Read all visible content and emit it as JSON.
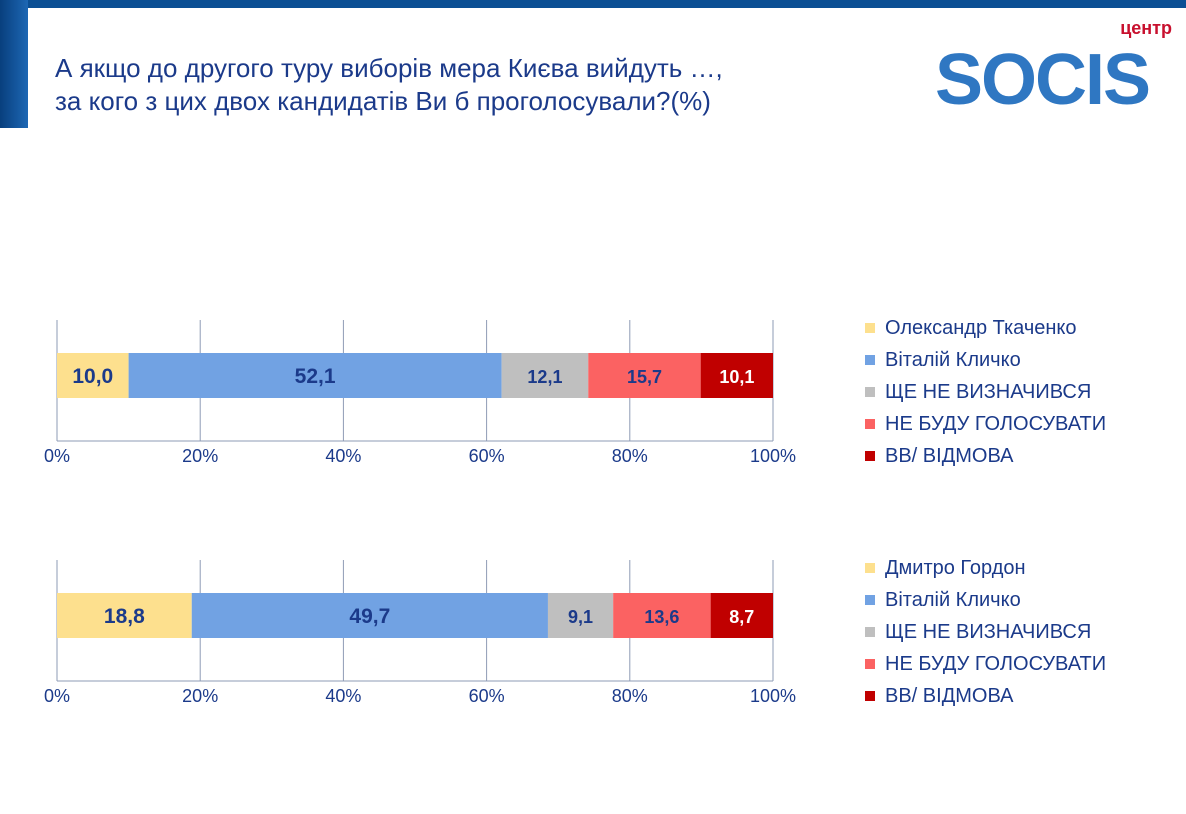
{
  "header": {
    "title_line1": "А якщо до другого туру виборів мера Києва вийдуть …,",
    "title_line2": "за кого з цих двох кандидатів Ви б проголосували?(%)",
    "logo_text": "SOCIS",
    "logo_small": "центр"
  },
  "chart_data": [
    {
      "type": "bar",
      "orientation": "horizontal",
      "stacked": true,
      "xlim": [
        0,
        100
      ],
      "ticks": [
        "0%",
        "20%",
        "40%",
        "60%",
        "80%",
        "100%"
      ],
      "grid": true,
      "legend_placement": "right",
      "series": [
        {
          "name": "Олександр Ткаченко",
          "values": [
            10.0
          ],
          "label": "10,0",
          "color": "#fde08e"
        },
        {
          "name": "Віталій Кличко",
          "values": [
            52.1
          ],
          "label": "52,1",
          "color": "#71a2e3"
        },
        {
          "name": "ЩЕ НЕ ВИЗНАЧИВСЯ",
          "values": [
            12.1
          ],
          "label": "12,1",
          "color": "#bfbfbf"
        },
        {
          "name": "НЕ БУДУ ГОЛОСУВАТИ",
          "values": [
            15.7
          ],
          "label": "15,7",
          "color": "#fb6262"
        },
        {
          "name": "ВВ/ ВІДМОВА",
          "values": [
            10.1
          ],
          "label": "10,1",
          "color": "#c00000"
        }
      ]
    },
    {
      "type": "bar",
      "orientation": "horizontal",
      "stacked": true,
      "xlim": [
        0,
        100
      ],
      "ticks": [
        "0%",
        "20%",
        "40%",
        "60%",
        "80%",
        "100%"
      ],
      "grid": true,
      "legend_placement": "right",
      "series": [
        {
          "name": "Дмитро Гордон",
          "values": [
            18.8
          ],
          "label": "18,8",
          "color": "#fde08e"
        },
        {
          "name": "Віталій Кличко",
          "values": [
            49.7
          ],
          "label": "49,7",
          "color": "#71a2e3"
        },
        {
          "name": "ЩЕ НЕ ВИЗНАЧИВСЯ",
          "values": [
            9.1
          ],
          "label": "9,1",
          "color": "#bfbfbf"
        },
        {
          "name": "НЕ БУДУ ГОЛОСУВАТИ",
          "values": [
            13.6
          ],
          "label": "13,6",
          "color": "#fb6262"
        },
        {
          "name": "ВВ/ ВІДМОВА",
          "values": [
            8.7
          ],
          "label": "8,7",
          "color": "#c00000"
        }
      ]
    }
  ]
}
